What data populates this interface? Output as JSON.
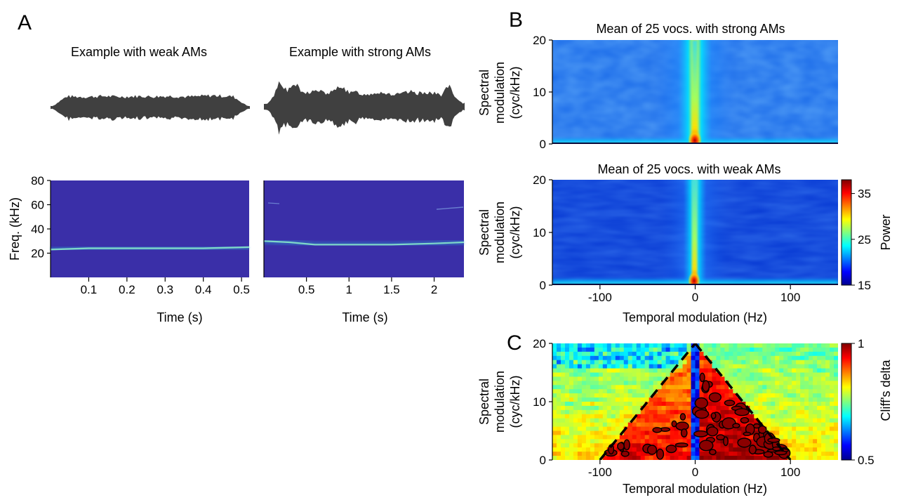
{
  "panel_labels": {
    "a": "A",
    "b": "B",
    "c": "C"
  },
  "colors": {
    "waveform": "#404040",
    "spectrogram_bg": "#3a2fa8",
    "spectrogram_band": "#7fd8c8",
    "contour": "#000000"
  },
  "chart_data": [
    {
      "id": "waveform-weak",
      "type": "area",
      "title": "Example with weak AMs",
      "xlabel": "",
      "ylabel": "",
      "description_values": [
        0.55,
        0.62,
        0.6,
        0.58,
        0.57,
        0.6,
        0.62,
        0.59,
        0.58,
        0.6,
        0.61,
        0.59,
        0.6,
        0.62,
        0.6,
        0.58,
        0.6,
        0.63,
        0.65,
        0.62,
        0.6,
        0.58,
        0.55
      ]
    },
    {
      "id": "waveform-strong",
      "type": "area",
      "title": "Example with strong AMs",
      "xlabel": "",
      "ylabel": "",
      "description_values": [
        0.6,
        0.55,
        0.95,
        0.5,
        0.8,
        0.45,
        0.5,
        0.55,
        0.45,
        0.5,
        0.75,
        0.45,
        0.5,
        0.4,
        0.45,
        0.5,
        0.45,
        0.4,
        0.45,
        0.5,
        0.45,
        0.5,
        0.45,
        0.4,
        0.75,
        0.5,
        0.85
      ]
    },
    {
      "id": "spectrogram-weak",
      "type": "heatmap",
      "xlabel": "Time (s)",
      "ylabel": "Freq. (kHz)",
      "xlim": [
        0,
        0.52
      ],
      "ylim": [
        0,
        80
      ],
      "xticks": [
        0.1,
        0.2,
        0.3,
        0.4,
        0.5
      ],
      "xtick_labels": [
        "0.1",
        "0.2",
        "0.3",
        "0.4",
        "0.5"
      ],
      "yticks": [
        20,
        40,
        60,
        80
      ],
      "ytick_labels": [
        "20",
        "40",
        "60",
        "80"
      ],
      "ridge_x": [
        0,
        0.1,
        0.2,
        0.3,
        0.4,
        0.52
      ],
      "ridge_y": [
        23,
        24,
        24,
        24,
        24,
        25
      ]
    },
    {
      "id": "spectrogram-strong",
      "type": "heatmap",
      "xlabel": "Time (s)",
      "ylabel": "",
      "xlim": [
        0,
        2.35
      ],
      "ylim": [
        0,
        80
      ],
      "xticks": [
        0.5,
        1,
        1.5,
        2
      ],
      "xtick_labels": [
        "0.5",
        "1",
        "1.5",
        "2"
      ],
      "ridge_x": [
        0,
        0.3,
        0.6,
        1.0,
        1.5,
        2.0,
        2.35
      ],
      "ridge_y": [
        30,
        29,
        27,
        27,
        27,
        28,
        29
      ]
    },
    {
      "id": "mps-strong",
      "type": "heatmap",
      "title": "Mean of 25 vocs. with strong AMs",
      "xlabel": "",
      "ylabel_line1": "Spectral",
      "ylabel_line2": "modulation",
      "ylabel_line3": "(cyc/kHz)",
      "xlim": [
        -150,
        150
      ],
      "ylim": [
        0,
        20
      ],
      "yticks": [
        0,
        10,
        20
      ],
      "ytick_labels": [
        "0",
        "10",
        "20"
      ]
    },
    {
      "id": "mps-weak",
      "type": "heatmap",
      "title": "Mean of 25 vocs. with weak AMs",
      "xlabel": "Temporal modulation (Hz)",
      "ylabel_line1": "Spectral",
      "ylabel_line2": "modulation",
      "ylabel_line3": "(cyc/kHz)",
      "xlim": [
        -150,
        150
      ],
      "ylim": [
        0,
        20
      ],
      "xticks": [
        -100,
        0,
        100
      ],
      "xtick_labels": [
        "-100",
        "0",
        "100"
      ],
      "yticks": [
        0,
        10,
        20
      ],
      "ytick_labels": [
        "0",
        "10",
        "20"
      ],
      "colorbar": {
        "label": "Power",
        "range": [
          15,
          38
        ],
        "ticks": [
          15,
          25,
          35
        ],
        "tick_labels": [
          "15",
          "25",
          "35"
        ]
      }
    },
    {
      "id": "cliffs-delta",
      "type": "heatmap",
      "xlabel": "Temporal modulation (Hz)",
      "ylabel_line1": "Spectral",
      "ylabel_line2": "modulation",
      "ylabel_line3": "(cyc/kHz)",
      "xlim": [
        -150,
        150
      ],
      "ylim": [
        0,
        20
      ],
      "xticks": [
        -100,
        0,
        100
      ],
      "xtick_labels": [
        "-100",
        "0",
        "100"
      ],
      "yticks": [
        0,
        10,
        20
      ],
      "ytick_labels": [
        "0",
        "10",
        "20"
      ],
      "triangle_left": {
        "x": [
          -100,
          0
        ],
        "y": [
          0,
          20
        ]
      },
      "triangle_right": {
        "x": [
          0,
          100
        ],
        "y": [
          20,
          0
        ]
      },
      "colorbar": {
        "label": "Cliff's delta",
        "range": [
          0.5,
          1
        ],
        "ticks": [
          0.5,
          1
        ],
        "tick_labels": [
          "0.5",
          "1"
        ]
      }
    }
  ]
}
